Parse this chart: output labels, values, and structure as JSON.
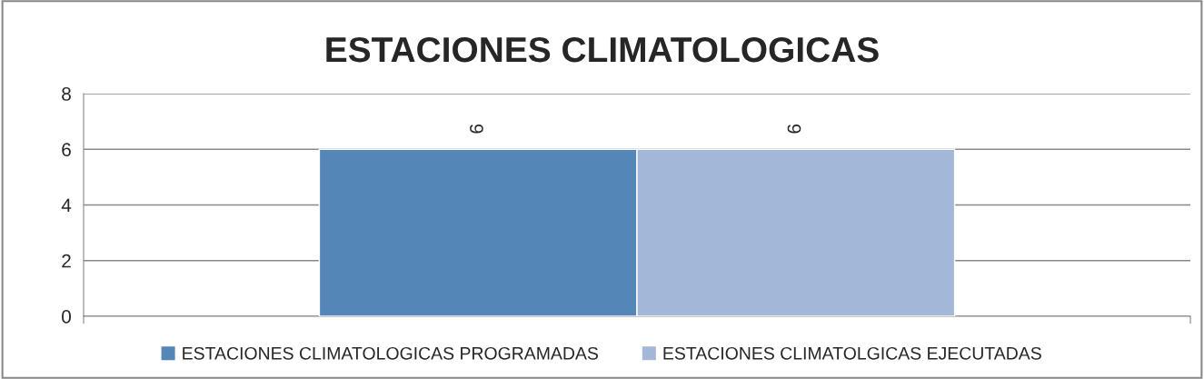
{
  "chart_data": {
    "type": "bar",
    "title": "ESTACIONES CLIMATOLOGICAS",
    "categories": [
      null
    ],
    "series": [
      {
        "name": "ESTACIONES CLIMATOLOGICAS PROGRAMADAS",
        "color": "#5586b8",
        "values": [
          6
        ]
      },
      {
        "name": "ESTACIONES CLIMATOLGICAS EJECUTADAS",
        "color": "#a3b7d9",
        "values": [
          6
        ]
      }
    ],
    "ylim": [
      0,
      8
    ],
    "yticks": [
      0,
      2,
      4,
      6,
      8
    ],
    "grid": "y",
    "legend": "bottom",
    "data_labels": true
  }
}
